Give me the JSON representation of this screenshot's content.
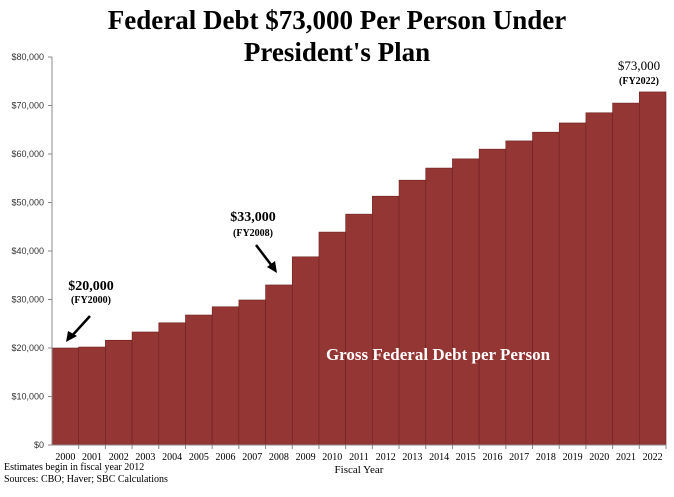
{
  "chart_data": {
    "type": "bar",
    "title_line1": "Federal Debt $73,000 Per Person Under",
    "title_line2": "President's Plan",
    "xlabel": "Fiscal Year",
    "ylabel": "",
    "ylim": [
      0,
      80000
    ],
    "yticks": [
      "$0",
      "$10,000",
      "$20,000",
      "$30,000",
      "$40,000",
      "$50,000",
      "$60,000",
      "$70,000",
      "$80,000"
    ],
    "categories": [
      "2000",
      "2001",
      "2002",
      "2003",
      "2004",
      "2005",
      "2006",
      "2007",
      "2008",
      "2009",
      "2010",
      "2011",
      "2012",
      "2013",
      "2014",
      "2015",
      "2016",
      "2017",
      "2018",
      "2019",
      "2020",
      "2021",
      "2022"
    ],
    "values": [
      20000,
      20200,
      21600,
      23300,
      25200,
      26800,
      28500,
      29900,
      33000,
      38800,
      43900,
      47600,
      51300,
      54600,
      57100,
      59000,
      61000,
      62700,
      64500,
      66400,
      68500,
      70500,
      72800
    ],
    "bar_color": "#943634",
    "in_chart_label": "Gross Federal Debt per Person",
    "grid": false,
    "annotations": [
      {
        "value": "$20,000",
        "sub": "(FY2000)"
      },
      {
        "value": "$33,000",
        "sub": "(FY2008)"
      },
      {
        "value": "$73,000",
        "sub": "(FY2022)"
      }
    ]
  },
  "notes": [
    "Estimates begin in fiscal year 2012",
    "Sources: CBO; Haver; SBC Calculations"
  ]
}
